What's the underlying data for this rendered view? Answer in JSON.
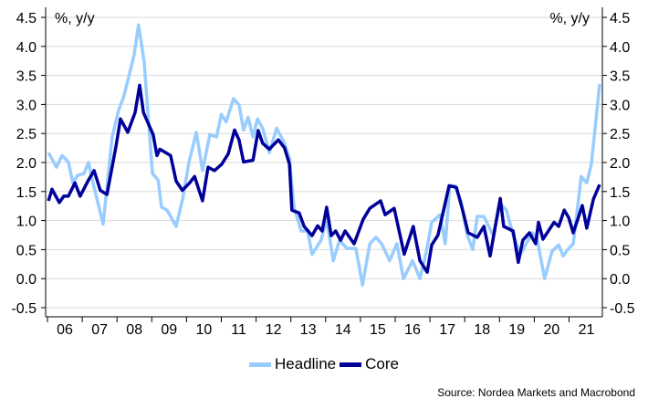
{
  "chart_data": {
    "type": "line",
    "title": "",
    "ylabel_left": "%, y/y",
    "ylabel_right": "%, y/y",
    "ylim": [
      -0.5,
      4.5
    ],
    "yticks": [
      "-0.5",
      "0.0",
      "0.5",
      "1.0",
      "1.5",
      "2.0",
      "2.5",
      "3.0",
      "3.5",
      "4.0",
      "4.5"
    ],
    "xlim": [
      2006,
      2022
    ],
    "xticks": [
      "06",
      "07",
      "08",
      "09",
      "10",
      "11",
      "12",
      "13",
      "14",
      "15",
      "16",
      "17",
      "18",
      "19",
      "20",
      "21"
    ],
    "grid": true,
    "legend_position": "bottom",
    "series": [
      {
        "name": "Headline",
        "color": "#99ccff",
        "x": [
          2006.03,
          2006.26,
          2006.42,
          2006.6,
          2006.73,
          2006.87,
          2007.05,
          2007.18,
          2007.31,
          2007.6,
          2007.86,
          2008.05,
          2008.18,
          2008.31,
          2008.49,
          2008.62,
          2008.78,
          2009.02,
          2009.18,
          2009.28,
          2009.44,
          2009.7,
          2009.89,
          2010.07,
          2010.28,
          2010.46,
          2010.67,
          2010.86,
          2011.0,
          2011.14,
          2011.35,
          2011.51,
          2011.64,
          2011.77,
          2011.91,
          2012.04,
          2012.19,
          2012.38,
          2012.59,
          2012.82,
          2012.96,
          2013.09,
          2013.3,
          2013.48,
          2013.61,
          2013.87,
          2014.03,
          2014.22,
          2014.4,
          2014.61,
          2014.87,
          2015.06,
          2015.27,
          2015.45,
          2015.61,
          2015.84,
          2016.05,
          2016.24,
          2016.5,
          2016.71,
          2016.89,
          2017.05,
          2017.29,
          2017.44,
          2017.57,
          2017.71,
          2017.89,
          2018.07,
          2018.23,
          2018.36,
          2018.55,
          2018.68,
          2018.81,
          2019.02,
          2019.2,
          2019.39,
          2019.6,
          2019.94,
          2020.07,
          2020.3,
          2020.51,
          2020.7,
          2020.83,
          2020.96,
          2021.12,
          2021.35,
          2021.51,
          2021.64,
          2021.77,
          2021.88
        ],
        "values": [
          2.17,
          1.92,
          2.12,
          2.01,
          1.65,
          1.78,
          1.81,
          2.0,
          1.65,
          0.94,
          2.44,
          2.91,
          3.11,
          3.41,
          3.85,
          4.37,
          3.74,
          1.81,
          1.7,
          1.23,
          1.18,
          0.9,
          1.38,
          2.01,
          2.52,
          1.86,
          2.48,
          2.44,
          2.83,
          2.7,
          3.1,
          2.99,
          2.56,
          2.78,
          2.44,
          2.75,
          2.59,
          2.17,
          2.59,
          2.33,
          2.07,
          1.23,
          0.82,
          0.82,
          0.42,
          0.66,
          1.02,
          0.31,
          0.66,
          0.52,
          0.52,
          -0.11,
          0.6,
          0.71,
          0.6,
          0.31,
          0.6,
          0.0,
          0.31,
          0.0,
          0.44,
          0.97,
          1.1,
          0.6,
          1.6,
          1.6,
          1.34,
          0.75,
          0.5,
          1.07,
          1.07,
          0.91,
          0.75,
          1.29,
          1.18,
          0.75,
          0.42,
          0.79,
          0.71,
          0.0,
          0.47,
          0.58,
          0.39,
          0.5,
          0.6,
          1.76,
          1.65,
          1.97,
          2.7,
          3.35
        ]
      },
      {
        "name": "Core",
        "color": "#000099",
        "x": [
          2006.03,
          2006.13,
          2006.34,
          2006.47,
          2006.6,
          2006.79,
          2006.94,
          2007.18,
          2007.34,
          2007.52,
          2007.71,
          2007.97,
          2008.1,
          2008.31,
          2008.52,
          2008.65,
          2008.76,
          2009.04,
          2009.15,
          2009.23,
          2009.54,
          2009.7,
          2009.88,
          2010.09,
          2010.23,
          2010.46,
          2010.62,
          2010.8,
          2011.01,
          2011.2,
          2011.38,
          2011.51,
          2011.64,
          2011.91,
          2012.06,
          2012.19,
          2012.38,
          2012.64,
          2012.82,
          2012.96,
          2013.03,
          2013.24,
          2013.38,
          2013.61,
          2013.77,
          2013.9,
          2014.03,
          2014.16,
          2014.29,
          2014.43,
          2014.56,
          2014.82,
          2015.08,
          2015.27,
          2015.58,
          2015.71,
          2015.97,
          2016.26,
          2016.52,
          2016.71,
          2016.92,
          2017.05,
          2017.23,
          2017.55,
          2017.76,
          2017.94,
          2018.1,
          2018.36,
          2018.55,
          2018.73,
          2019.02,
          2019.12,
          2019.39,
          2019.54,
          2019.67,
          2019.86,
          2020.04,
          2020.12,
          2020.25,
          2020.57,
          2020.7,
          2020.86,
          2020.99,
          2021.12,
          2021.38,
          2021.51,
          2021.7,
          2021.88
        ],
        "values": [
          1.34,
          1.54,
          1.31,
          1.42,
          1.42,
          1.65,
          1.42,
          1.7,
          1.86,
          1.52,
          1.45,
          2.28,
          2.75,
          2.52,
          2.86,
          3.33,
          2.86,
          2.48,
          2.12,
          2.23,
          2.12,
          1.68,
          1.52,
          1.65,
          1.76,
          1.34,
          1.92,
          1.86,
          1.97,
          2.15,
          2.56,
          2.39,
          2.01,
          2.04,
          2.55,
          2.33,
          2.23,
          2.39,
          2.25,
          1.97,
          1.18,
          1.13,
          0.9,
          0.74,
          0.91,
          0.82,
          1.23,
          0.74,
          0.82,
          0.66,
          0.82,
          0.6,
          1.02,
          1.21,
          1.34,
          1.1,
          1.21,
          0.42,
          0.9,
          0.31,
          0.11,
          0.58,
          0.75,
          1.6,
          1.57,
          1.18,
          0.79,
          0.71,
          0.9,
          0.39,
          1.38,
          0.9,
          0.82,
          0.28,
          0.66,
          0.79,
          0.6,
          0.97,
          0.68,
          0.97,
          0.9,
          1.18,
          1.05,
          0.79,
          1.26,
          0.87,
          1.37,
          1.62
        ]
      }
    ]
  },
  "footer": {
    "source": "Source: Nordea Markets and Macrobond"
  }
}
